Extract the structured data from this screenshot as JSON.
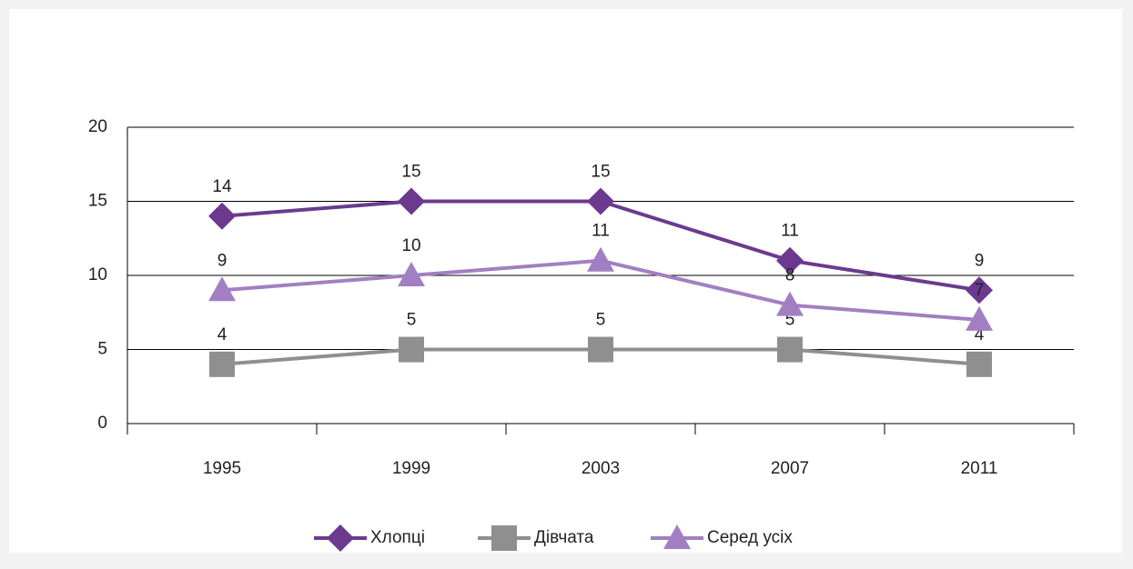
{
  "chart_data": {
    "type": "line",
    "categories": [
      "1995",
      "1999",
      "2003",
      "2007",
      "2011"
    ],
    "series": [
      {
        "name": "Хлопці",
        "color": "#6b3a8f",
        "marker": "diamond",
        "values": [
          14,
          15,
          15,
          11,
          9
        ]
      },
      {
        "name": "Дівчата",
        "color": "#8f8f8f",
        "marker": "square",
        "values": [
          4,
          5,
          5,
          5,
          4
        ]
      },
      {
        "name": "Серед усіх",
        "color": "#a27fc2",
        "marker": "triangle",
        "values": [
          9,
          10,
          11,
          8,
          7
        ]
      }
    ],
    "ylim": [
      0,
      20
    ],
    "yticks": [
      0,
      5,
      10,
      15,
      20
    ],
    "grid": true,
    "legend": "bottom"
  }
}
